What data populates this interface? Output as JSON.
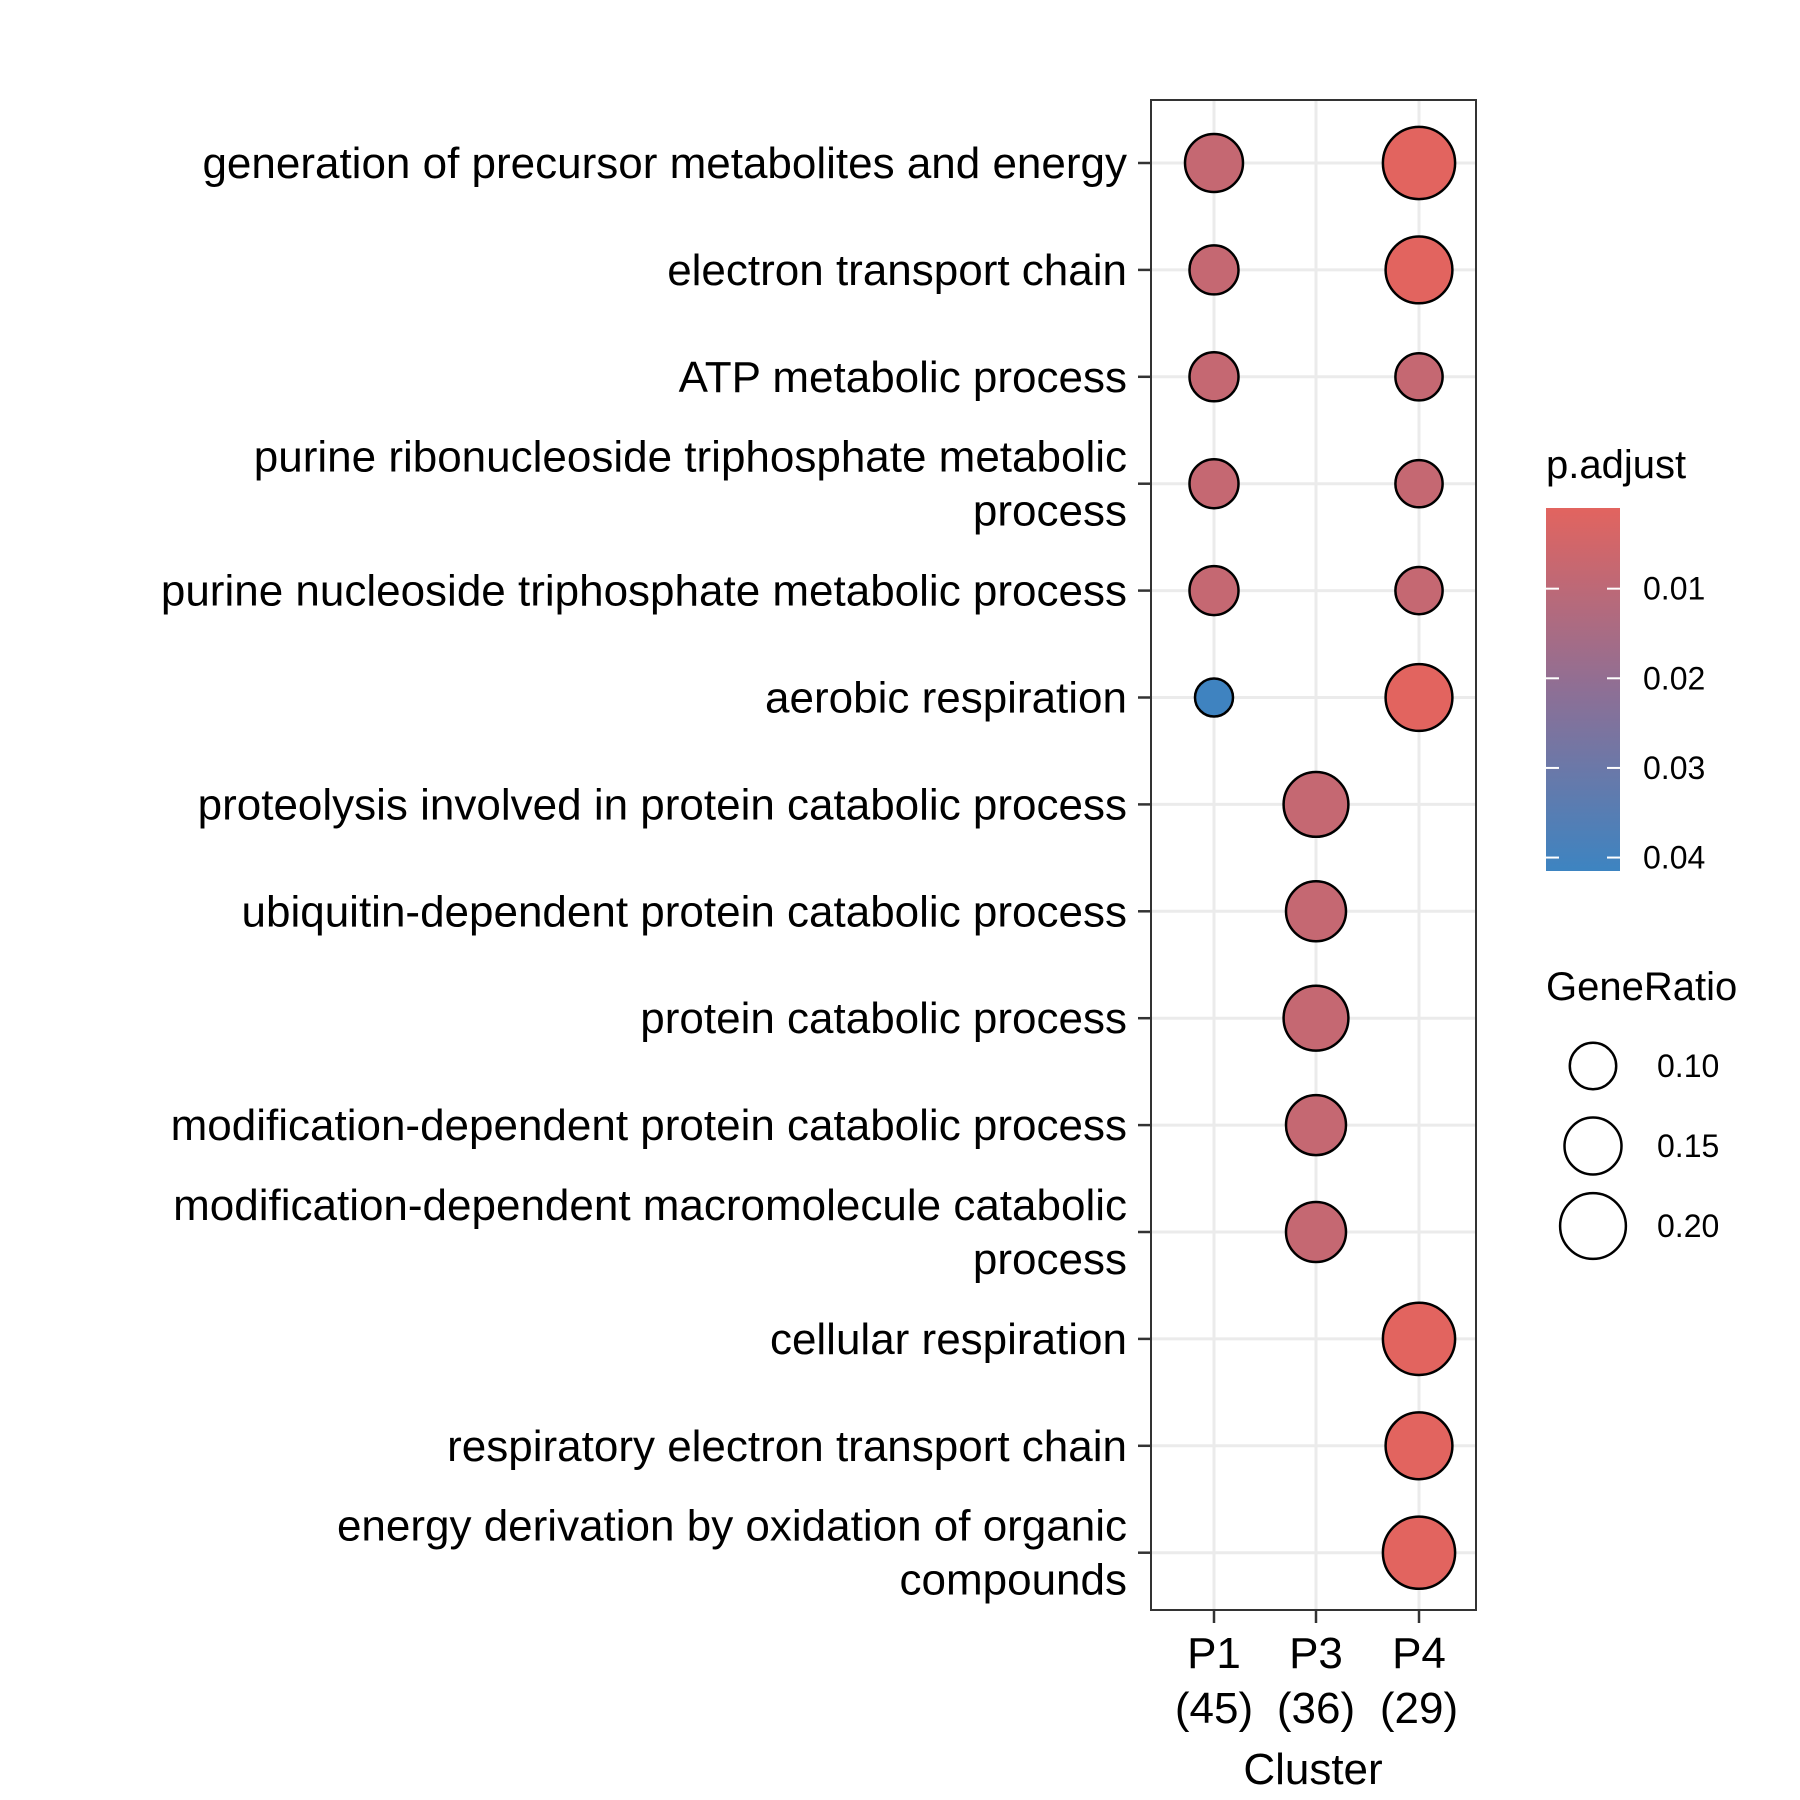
{
  "chart_data": {
    "type": "scatter",
    "subtype": "dot plot (enrichment)",
    "xlabel": "Cluster",
    "ylabel": "",
    "x_categories": [
      {
        "name": "P1",
        "count": "(45)"
      },
      {
        "name": "P3",
        "count": "(36)"
      },
      {
        "name": "P4",
        "count": "(29)"
      }
    ],
    "y_categories": [
      [
        "generation of precursor metabolites and energy"
      ],
      [
        "electron transport chain"
      ],
      [
        "ATP metabolic process"
      ],
      [
        "purine ribonucleoside triphosphate metabolic",
        "process"
      ],
      [
        "purine nucleoside triphosphate metabolic process"
      ],
      [
        "aerobic respiration"
      ],
      [
        "proteolysis involved in protein catabolic process"
      ],
      [
        "ubiquitin-dependent protein catabolic process"
      ],
      [
        "protein catabolic process"
      ],
      [
        "modification-dependent protein catabolic process"
      ],
      [
        "modification-dependent macromolecule catabolic",
        "process"
      ],
      [
        "cellular respiration"
      ],
      [
        "respiratory electron transport chain"
      ],
      [
        "energy derivation by oxidation of organic",
        "compounds"
      ]
    ],
    "points": [
      {
        "x": "P1",
        "y": 0,
        "gene_ratio": 0.156,
        "p_adjust": 0.008
      },
      {
        "x": "P4",
        "y": 0,
        "gene_ratio": 0.241,
        "p_adjust": 0.001
      },
      {
        "x": "P1",
        "y": 1,
        "gene_ratio": 0.111,
        "p_adjust": 0.008
      },
      {
        "x": "P4",
        "y": 1,
        "gene_ratio": 0.207,
        "p_adjust": 0.001
      },
      {
        "x": "P1",
        "y": 2,
        "gene_ratio": 0.111,
        "p_adjust": 0.008
      },
      {
        "x": "P4",
        "y": 2,
        "gene_ratio": 0.103,
        "p_adjust": 0.008
      },
      {
        "x": "P1",
        "y": 3,
        "gene_ratio": 0.111,
        "p_adjust": 0.008
      },
      {
        "x": "P4",
        "y": 3,
        "gene_ratio": 0.103,
        "p_adjust": 0.008
      },
      {
        "x": "P1",
        "y": 4,
        "gene_ratio": 0.111,
        "p_adjust": 0.008
      },
      {
        "x": "P4",
        "y": 4,
        "gene_ratio": 0.103,
        "p_adjust": 0.008
      },
      {
        "x": "P1",
        "y": 5,
        "gene_ratio": 0.067,
        "p_adjust": 0.041
      },
      {
        "x": "P4",
        "y": 5,
        "gene_ratio": 0.207,
        "p_adjust": 0.001
      },
      {
        "x": "P3",
        "y": 6,
        "gene_ratio": 0.194,
        "p_adjust": 0.008
      },
      {
        "x": "P3",
        "y": 7,
        "gene_ratio": 0.167,
        "p_adjust": 0.008
      },
      {
        "x": "P3",
        "y": 8,
        "gene_ratio": 0.194,
        "p_adjust": 0.008
      },
      {
        "x": "P3",
        "y": 9,
        "gene_ratio": 0.167,
        "p_adjust": 0.008
      },
      {
        "x": "P3",
        "y": 10,
        "gene_ratio": 0.167,
        "p_adjust": 0.008
      },
      {
        "x": "P4",
        "y": 11,
        "gene_ratio": 0.241,
        "p_adjust": 0.001
      },
      {
        "x": "P4",
        "y": 12,
        "gene_ratio": 0.207,
        "p_adjust": 0.001
      },
      {
        "x": "P4",
        "y": 13,
        "gene_ratio": 0.241,
        "p_adjust": 0.001
      }
    ],
    "color_legend": {
      "title": "p.adjust",
      "ticks": [
        0.01,
        0.02,
        0.03,
        0.04
      ],
      "tick_labels": [
        "0.01",
        "0.02",
        "0.03",
        "0.04"
      ],
      "range": [
        0.001,
        0.0415
      ],
      "low_color": "#E2645F",
      "high_color": "#3D84C1",
      "mid_color": "#8E6F95"
    },
    "size_legend": {
      "title": "GeneRatio",
      "values": [
        0.1,
        0.15,
        0.2
      ],
      "labels": [
        "0.10",
        "0.15",
        "0.20"
      ]
    },
    "grid": true,
    "legend_position": "right"
  }
}
